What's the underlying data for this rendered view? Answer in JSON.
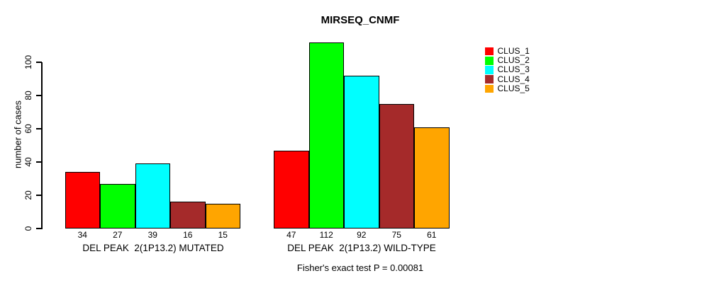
{
  "chart_data": {
    "type": "bar",
    "title": "MIRSEQ_CNMF",
    "ylabel": "number of cases",
    "caption": "Fisher's exact test P = 0.00081",
    "yticks": [
      0,
      20,
      40,
      60,
      80,
      100
    ],
    "ylim": [
      0,
      117
    ],
    "grid": false,
    "legend_position": "right",
    "bar_border_color": "#000000",
    "categories": [
      "DEL PEAK  2(1P13.2) MUTATED",
      "DEL PEAK  2(1P13.2) WILD-TYPE"
    ],
    "series": [
      {
        "name": "CLUS_1",
        "color": "#FF0000",
        "values": [
          34,
          47
        ]
      },
      {
        "name": "CLUS_2",
        "color": "#00FF00",
        "values": [
          27,
          112
        ]
      },
      {
        "name": "CLUS_3",
        "color": "#00FFFF",
        "values": [
          39,
          92
        ]
      },
      {
        "name": "CLUS_4",
        "color": "#A52A2A",
        "values": [
          16,
          75
        ]
      },
      {
        "name": "CLUS_5",
        "color": "#FFA500",
        "values": [
          15,
          61
        ]
      }
    ]
  }
}
